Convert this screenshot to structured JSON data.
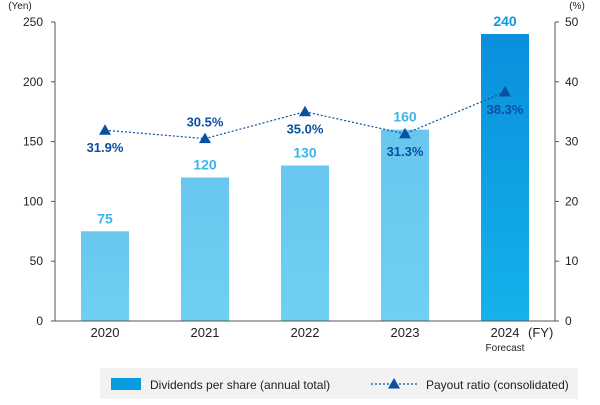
{
  "chart_data": {
    "type": "bar",
    "categories": [
      "2020",
      "2021",
      "2022",
      "2023",
      "2024"
    ],
    "category_sublabels": [
      "",
      "",
      "",
      "",
      "Forecast"
    ],
    "series": [
      {
        "name": "Dividends per share (annual total)",
        "type": "bar",
        "axis": "left",
        "values": [
          75,
          120,
          130,
          160,
          240
        ],
        "labels": [
          "75",
          "120",
          "130",
          "160",
          "240"
        ]
      },
      {
        "name": "Payout ratio (consolidated)",
        "type": "line",
        "axis": "right",
        "values": [
          31.9,
          30.5,
          35.0,
          31.3,
          38.3
        ],
        "labels": [
          "31.9%",
          "30.5%",
          "35.0%",
          "31.3%",
          "38.3%"
        ]
      }
    ],
    "y_left": {
      "unit": "(Yen)",
      "min": 0,
      "max": 250,
      "ticks": [
        0,
        50,
        100,
        150,
        200,
        250
      ]
    },
    "y_right": {
      "unit": "(%)",
      "min": 0,
      "max": 50,
      "ticks": [
        0,
        10,
        20,
        30,
        40,
        50
      ]
    },
    "x_unit": "(FY)",
    "highlight_index": 4,
    "colors": {
      "bar": "#69c6ef",
      "bar_highlight": "#0a9be0",
      "bar_label": "#3fb3e8",
      "line": "#0a4fa0",
      "axis": "#555555"
    },
    "legend": {
      "bar_label": "Dividends per share (annual total)",
      "line_label": "Payout ratio (consolidated)"
    }
  }
}
